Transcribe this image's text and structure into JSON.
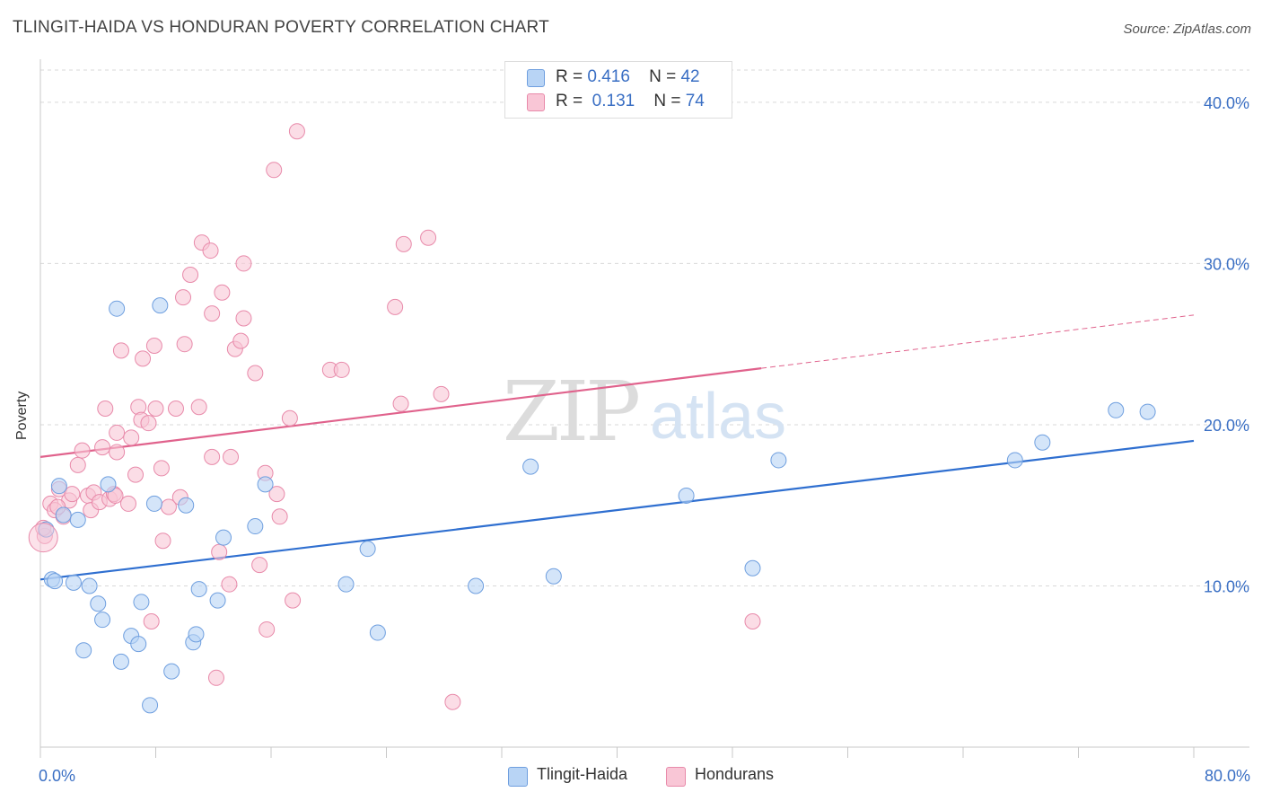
{
  "title": "TLINGIT-HAIDA VS HONDURAN POVERTY CORRELATION CHART",
  "source": "Source: ZipAtlas.com",
  "watermark": {
    "zip": "ZIP",
    "atlas": "atlas"
  },
  "legend": {
    "r_label": "R =",
    "n_label": "N =",
    "rows": [
      {
        "name": "Tlingit-Haida",
        "r": "0.416",
        "n": "42",
        "fill": "#b8d4f5",
        "stroke": "#6f9fdf"
      },
      {
        "name": "Hondurans",
        "r": "0.131",
        "n": "74",
        "fill": "#f9c6d6",
        "stroke": "#e88aaa"
      }
    ]
  },
  "chart_data": {
    "type": "scatter",
    "title": "TLINGIT-HAIDA VS HONDURAN POVERTY CORRELATION CHART",
    "xlabel": "",
    "ylabel": "Poverty",
    "xlim": [
      0,
      80
    ],
    "ylim": [
      0,
      42
    ],
    "x_tick_labels": [
      "0.0%",
      "80.0%"
    ],
    "y_ticks": [
      10,
      20,
      30,
      40
    ],
    "y_tick_labels": [
      "10.0%",
      "20.0%",
      "30.0%",
      "40.0%"
    ],
    "grid": true,
    "series": [
      {
        "name": "Tlingit-Haida",
        "color": "#6f9fdf",
        "fill": "#b8d4f5",
        "line_color": "#2f6fd0",
        "trend": {
          "x0": 0,
          "y0": 10.4,
          "x1": 80,
          "y1": 19.0,
          "solid_to": 80
        },
        "points": [
          [
            0.4,
            13.5
          ],
          [
            0.8,
            10.4
          ],
          [
            1.0,
            10.3
          ],
          [
            1.3,
            16.2
          ],
          [
            1.6,
            14.4
          ],
          [
            2.3,
            10.2
          ],
          [
            2.6,
            14.1
          ],
          [
            3.0,
            6.0
          ],
          [
            3.4,
            10.0
          ],
          [
            4.0,
            8.9
          ],
          [
            4.3,
            7.9
          ],
          [
            4.7,
            16.3
          ],
          [
            5.3,
            27.2
          ],
          [
            5.6,
            5.3
          ],
          [
            6.3,
            6.9
          ],
          [
            6.8,
            6.4
          ],
          [
            7.0,
            9.0
          ],
          [
            7.6,
            2.6
          ],
          [
            7.9,
            15.1
          ],
          [
            8.3,
            27.4
          ],
          [
            9.1,
            4.7
          ],
          [
            10.1,
            15.0
          ],
          [
            10.6,
            6.5
          ],
          [
            10.8,
            7.0
          ],
          [
            11.0,
            9.8
          ],
          [
            12.3,
            9.1
          ],
          [
            12.7,
            13.0
          ],
          [
            14.9,
            13.7
          ],
          [
            15.6,
            16.3
          ],
          [
            21.2,
            10.1
          ],
          [
            22.7,
            12.3
          ],
          [
            23.4,
            7.1
          ],
          [
            30.2,
            10.0
          ],
          [
            34.0,
            17.4
          ],
          [
            35.6,
            10.6
          ],
          [
            44.8,
            15.6
          ],
          [
            49.4,
            11.1
          ],
          [
            51.2,
            17.8
          ],
          [
            67.6,
            17.8
          ],
          [
            69.5,
            18.9
          ],
          [
            74.6,
            20.9
          ],
          [
            76.8,
            20.8
          ]
        ]
      },
      {
        "name": "Hondurans",
        "color": "#e88aaa",
        "fill": "#f9c6d6",
        "line_color": "#e0628c",
        "trend": {
          "x0": 0,
          "y0": 18.0,
          "x1": 80,
          "y1": 26.8,
          "solid_to": 50
        },
        "points": [
          [
            0.3,
            13.1
          ],
          [
            0.7,
            15.1
          ],
          [
            1.0,
            14.7
          ],
          [
            1.3,
            16.0
          ],
          [
            1.6,
            14.3
          ],
          [
            2.0,
            15.3
          ],
          [
            2.2,
            15.7
          ],
          [
            2.6,
            17.5
          ],
          [
            2.9,
            18.4
          ],
          [
            3.3,
            15.6
          ],
          [
            3.5,
            14.7
          ],
          [
            3.7,
            15.8
          ],
          [
            4.1,
            15.2
          ],
          [
            4.3,
            18.6
          ],
          [
            4.5,
            21.0
          ],
          [
            4.8,
            15.4
          ],
          [
            5.1,
            15.7
          ],
          [
            5.2,
            15.6
          ],
          [
            5.3,
            18.3
          ],
          [
            5.3,
            19.5
          ],
          [
            5.6,
            24.6
          ],
          [
            6.1,
            15.1
          ],
          [
            6.3,
            19.2
          ],
          [
            6.6,
            16.9
          ],
          [
            6.8,
            21.1
          ],
          [
            7.0,
            20.3
          ],
          [
            7.1,
            24.1
          ],
          [
            7.5,
            20.1
          ],
          [
            7.7,
            7.8
          ],
          [
            7.9,
            24.9
          ],
          [
            8.0,
            21.0
          ],
          [
            8.4,
            17.3
          ],
          [
            8.5,
            12.8
          ],
          [
            8.9,
            14.9
          ],
          [
            9.4,
            21.0
          ],
          [
            9.7,
            15.5
          ],
          [
            9.9,
            27.9
          ],
          [
            10.0,
            25.0
          ],
          [
            10.4,
            29.3
          ],
          [
            11.0,
            21.1
          ],
          [
            11.2,
            31.3
          ],
          [
            11.8,
            30.8
          ],
          [
            11.9,
            18.0
          ],
          [
            11.9,
            26.9
          ],
          [
            12.2,
            4.3
          ],
          [
            12.4,
            12.1
          ],
          [
            12.6,
            28.2
          ],
          [
            13.1,
            10.1
          ],
          [
            13.2,
            18.0
          ],
          [
            13.5,
            24.7
          ],
          [
            13.9,
            25.2
          ],
          [
            14.1,
            26.6
          ],
          [
            14.1,
            30.0
          ],
          [
            14.9,
            23.2
          ],
          [
            15.2,
            11.3
          ],
          [
            15.6,
            17.0
          ],
          [
            15.7,
            7.3
          ],
          [
            16.2,
            35.8
          ],
          [
            16.4,
            15.7
          ],
          [
            16.6,
            14.3
          ],
          [
            17.3,
            20.4
          ],
          [
            17.5,
            9.1
          ],
          [
            17.8,
            38.2
          ],
          [
            20.1,
            23.4
          ],
          [
            20.9,
            23.4
          ],
          [
            24.6,
            27.3
          ],
          [
            25.0,
            21.3
          ],
          [
            25.2,
            31.2
          ],
          [
            26.9,
            31.6
          ],
          [
            27.8,
            21.9
          ],
          [
            28.6,
            2.8
          ],
          [
            49.4,
            7.8
          ],
          [
            1.2,
            14.9
          ],
          [
            0.2,
            13.6
          ]
        ]
      }
    ]
  },
  "bottom_legend": [
    "Tlingit-Haida",
    "Hondurans"
  ]
}
